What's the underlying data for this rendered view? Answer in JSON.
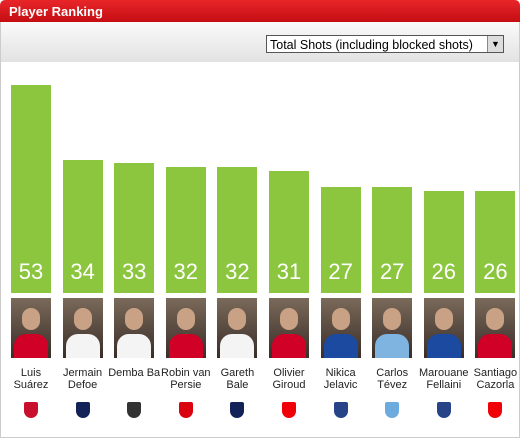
{
  "header": {
    "title": "Player Ranking"
  },
  "selector": {
    "selected": "Total Shots (including blocked shots)"
  },
  "chart_data": {
    "type": "bar",
    "categories": [
      "Luis Suárez",
      "Jermain Defoe",
      "Demba Ba",
      "Robin van Persie",
      "Gareth Bale",
      "Olivier Giroud",
      "Nikica Jelavic",
      "Carlos Tévez",
      "Marouane Fellaini",
      "Santiago Cazorla"
    ],
    "values": [
      53,
      34,
      33,
      32,
      32,
      31,
      27,
      27,
      26,
      26
    ],
    "color": "#8cc63f"
  }
}
